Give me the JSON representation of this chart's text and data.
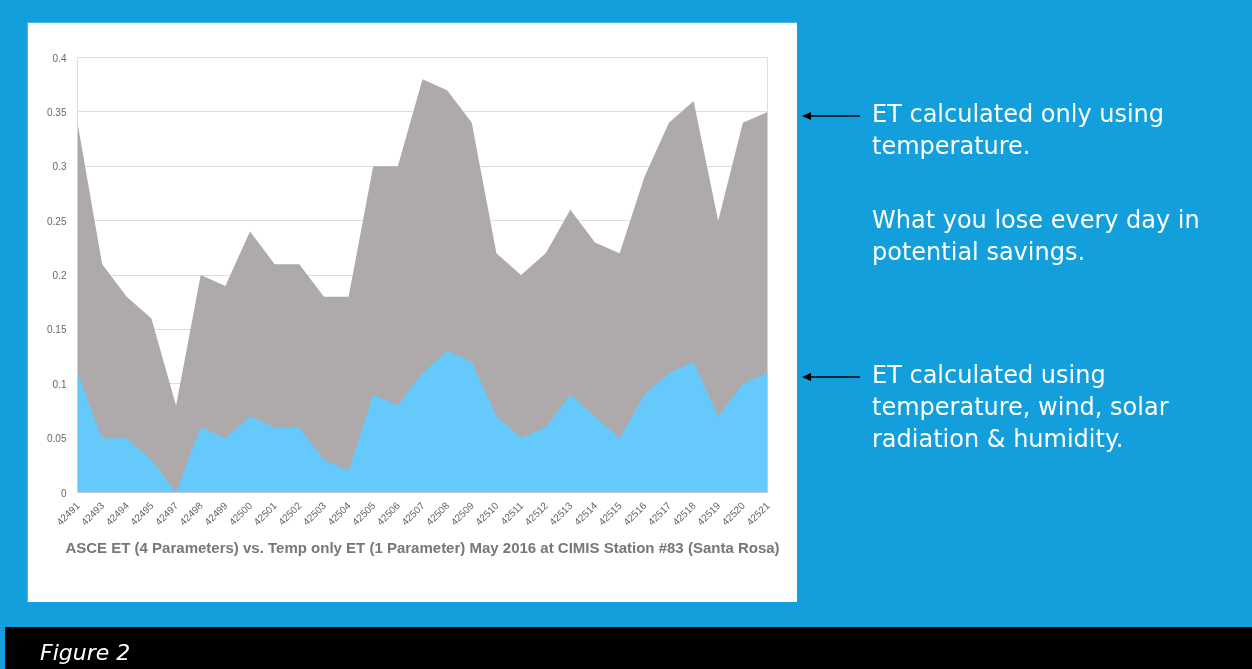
{
  "chart_data": {
    "type": "area",
    "title": "ASCE ET (4 Parameters) vs. Temp only ET (1 Parameter) May 2016 at CIMIS Station #83 (Santa Rosa)",
    "categories": [
      "42491",
      "42493",
      "42494",
      "42495",
      "42497",
      "42498",
      "42499",
      "42500",
      "42501",
      "42502",
      "42503",
      "42504",
      "42505",
      "42506",
      "42507",
      "42508",
      "42509",
      "42510",
      "42511",
      "42512",
      "42513",
      "42514",
      "42515",
      "42516",
      "42517",
      "42518",
      "42519",
      "42520",
      "42521"
    ],
    "series": [
      {
        "color": "#aeaaab",
        "values": [
          0.34,
          0.21,
          0.18,
          0.16,
          0.08,
          0.2,
          0.19,
          0.24,
          0.21,
          0.21,
          0.18,
          0.18,
          0.3,
          0.3,
          0.38,
          0.37,
          0.34,
          0.22,
          0.2,
          0.22,
          0.26,
          0.23,
          0.22,
          0.29,
          0.34,
          0.36,
          0.25,
          0.34,
          0.35
        ]
      },
      {
        "color": "#66c9fc",
        "values": [
          0.11,
          0.05,
          0.05,
          0.03,
          0.0,
          0.06,
          0.05,
          0.07,
          0.06,
          0.06,
          0.03,
          0.02,
          0.09,
          0.08,
          0.11,
          0.13,
          0.12,
          0.07,
          0.05,
          0.06,
          0.09,
          0.07,
          0.05,
          0.09,
          0.11,
          0.12,
          0.07,
          0.1,
          0.11
        ]
      }
    ],
    "ylim": [
      0,
      0.4
    ],
    "yticks": [
      0,
      0.05,
      0.1,
      0.15,
      0.2,
      0.25,
      0.3,
      0.35,
      0.4
    ],
    "grid": "y",
    "annotations": [
      "ET calculated only using temperature.",
      "What you lose every day in potential savings.",
      "ET calculated using temperature, wind, solar radiation & humidity.",
      "Figure 2"
    ]
  }
}
